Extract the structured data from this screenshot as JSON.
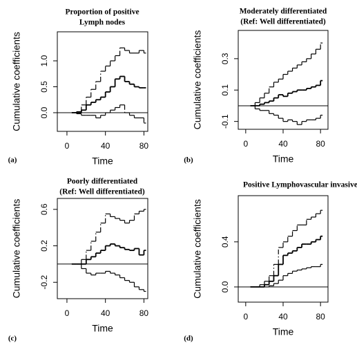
{
  "chart_data": [
    {
      "type": "step",
      "title": [
        "Proportion of positive",
        "Lymph nodes"
      ],
      "panel_label": "(a)",
      "x_label": "Time",
      "y_label": "Cumulative coefficients",
      "xlim": [
        -10,
        84
      ],
      "xticks": [
        0,
        40,
        80
      ],
      "ylim": [
        -0.36,
        1.56
      ],
      "yticks": [
        {
          "value": 0,
          "label": "0.0"
        },
        0.5,
        {
          "value": 1,
          "label": "1.0"
        }
      ],
      "reference_line": 0,
      "x": [
        5,
        10,
        15,
        20,
        25,
        30,
        35,
        40,
        45,
        50,
        55,
        60,
        65,
        70,
        75,
        80
      ],
      "series": [
        {
          "style": "solid",
          "color": "#000000",
          "values": [
            0,
            0,
            0.05,
            0.15,
            0.2,
            0.25,
            0.3,
            0.4,
            0.5,
            0.65,
            0.7,
            0.6,
            0.55,
            0.5,
            0.48,
            0.48
          ]
        },
        {
          "style": "dashed",
          "color": "#000000",
          "values": [
            0,
            0.02,
            0.15,
            0.3,
            0.45,
            0.6,
            0.8,
            0.9,
            1.0,
            1.1,
            1.25,
            1.2,
            1.15,
            1.15,
            1.2,
            1.15
          ]
        },
        {
          "style": "dashed",
          "color": "#000000",
          "values": [
            0,
            -0.02,
            -0.05,
            -0.05,
            -0.05,
            -0.1,
            -0.05,
            0,
            0.05,
            0.1,
            0.15,
            0,
            -0.05,
            -0.1,
            -0.1,
            -0.2
          ]
        }
      ]
    },
    {
      "type": "step",
      "title": [
        "Moderately differentiated",
        "(Ref: Well differentiated)"
      ],
      "panel_label": "(b)",
      "x_label": "Time",
      "y_label": "Cumulative coefficients",
      "xlim": [
        -8,
        88
      ],
      "xticks": [
        0,
        40,
        80
      ],
      "ylim": [
        -0.15,
        0.48
      ],
      "yticks": [
        -0.1,
        0.1,
        0.3
      ],
      "reference_line": 0,
      "x": [
        5,
        10,
        15,
        20,
        25,
        30,
        35,
        40,
        45,
        50,
        55,
        60,
        65,
        70,
        75,
        80
      ],
      "series": [
        {
          "style": "solid",
          "color": "#000000",
          "values": [
            0,
            0,
            0.01,
            0.02,
            0.03,
            0.05,
            0.07,
            0.06,
            0.08,
            0.09,
            0.1,
            0.1,
            0.11,
            0.12,
            0.13,
            0.16
          ]
        },
        {
          "style": "dashed",
          "color": "#000000",
          "values": [
            0,
            0.02,
            0.05,
            0.08,
            0.12,
            0.15,
            0.17,
            0.2,
            0.22,
            0.24,
            0.26,
            0.28,
            0.3,
            0.33,
            0.36,
            0.4
          ]
        },
        {
          "style": "dashed",
          "color": "#000000",
          "values": [
            0,
            -0.02,
            -0.03,
            -0.03,
            -0.05,
            -0.06,
            -0.08,
            -0.1,
            -0.09,
            -0.1,
            -0.12,
            -0.1,
            -0.09,
            -0.09,
            -0.08,
            -0.06
          ]
        }
      ]
    },
    {
      "type": "step",
      "title": [
        "Poorly differentiated",
        "(Ref: Well differentiated)"
      ],
      "panel_label": "(c)",
      "x_label": "Time",
      "y_label": "Cumulative coefficients",
      "xlim": [
        -10,
        84
      ],
      "xticks": [
        0,
        40,
        80
      ],
      "ylim": [
        -0.38,
        0.72
      ],
      "yticks": [
        -0.2,
        0.2,
        0.6
      ],
      "reference_line": 0,
      "x": [
        5,
        10,
        15,
        20,
        25,
        30,
        35,
        40,
        45,
        50,
        55,
        60,
        65,
        70,
        75,
        80
      ],
      "series": [
        {
          "style": "solid",
          "color": "#000000",
          "values": [
            0,
            0,
            0,
            0.05,
            0.08,
            0.12,
            0.15,
            0.2,
            0.22,
            0.2,
            0.18,
            0.16,
            0.15,
            0.17,
            0.1,
            0.15
          ]
        },
        {
          "style": "dashed",
          "color": "#000000",
          "values": [
            0,
            0,
            0.05,
            0.15,
            0.25,
            0.35,
            0.45,
            0.55,
            0.52,
            0.5,
            0.48,
            0.45,
            0.48,
            0.55,
            0.58,
            0.6
          ]
        },
        {
          "style": "dashed",
          "color": "#000000",
          "values": [
            0,
            0,
            -0.05,
            -0.1,
            -0.12,
            -0.1,
            -0.1,
            -0.08,
            -0.1,
            -0.12,
            -0.15,
            -0.18,
            -0.2,
            -0.25,
            -0.28,
            -0.3
          ]
        }
      ]
    },
    {
      "type": "step",
      "title": [
        "Positive Lymphovascular invasive"
      ],
      "panel_label": "(d)",
      "x_label": "Time",
      "y_label": "Cumulative coefficients",
      "xlim": [
        -8,
        88
      ],
      "xticks": [
        0,
        40,
        80
      ],
      "ylim": [
        -0.135,
        0.81
      ],
      "yticks": [
        {
          "value": 0,
          "label": "0.0"
        },
        0.4
      ],
      "reference_line": 0,
      "x": [
        5,
        10,
        15,
        20,
        25,
        30,
        35,
        40,
        45,
        50,
        55,
        60,
        65,
        70,
        75,
        80
      ],
      "series": [
        {
          "style": "solid",
          "color": "#000000",
          "values": [
            0,
            0,
            0,
            0.02,
            0.05,
            0.1,
            0.2,
            0.28,
            0.3,
            0.32,
            0.35,
            0.38,
            0.38,
            0.4,
            0.42,
            0.45
          ]
        },
        {
          "style": "dashed",
          "color": "#000000",
          "values": [
            0,
            0,
            0.02,
            0.05,
            0.1,
            0.2,
            0.35,
            0.4,
            0.45,
            0.5,
            0.55,
            0.55,
            0.6,
            0.62,
            0.65,
            0.68
          ]
        },
        {
          "style": "dashed",
          "color": "#000000",
          "values": [
            0,
            0,
            0,
            0,
            0.01,
            0.03,
            0.06,
            0.1,
            0.12,
            0.14,
            0.15,
            0.16,
            0.17,
            0.18,
            0.18,
            0.2
          ]
        }
      ]
    }
  ]
}
